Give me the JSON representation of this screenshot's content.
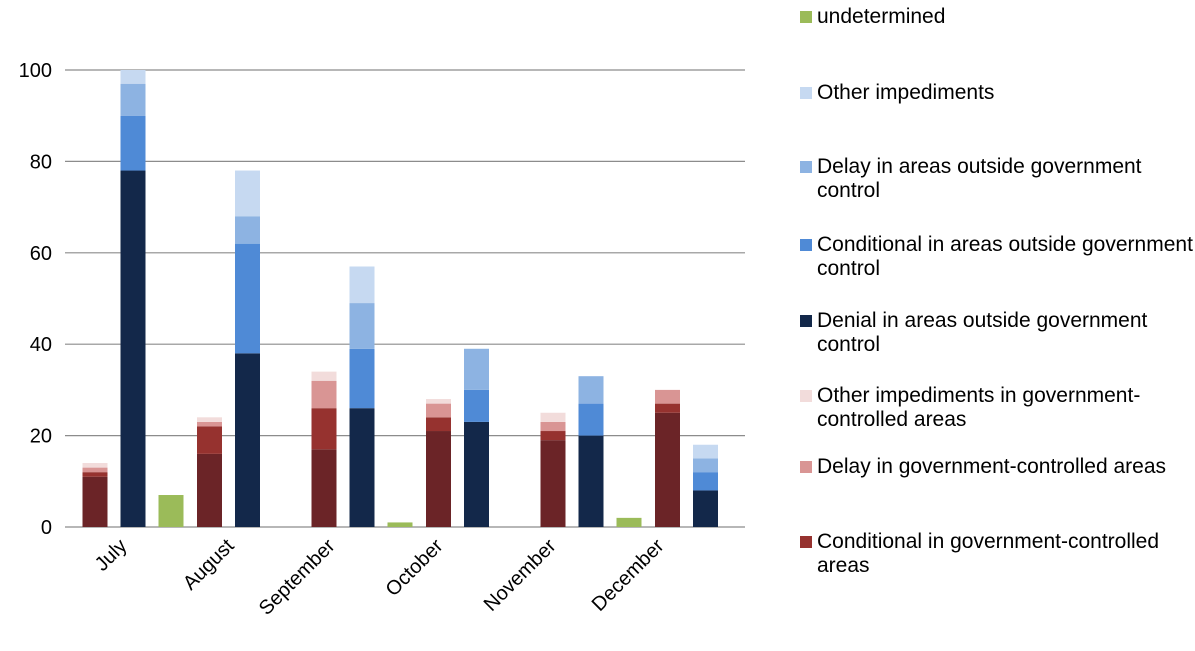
{
  "chart_data": {
    "type": "bar",
    "stacked": true,
    "ylim": [
      0,
      100
    ],
    "yticks": [
      0,
      20,
      40,
      60,
      80,
      100
    ],
    "grid": true,
    "legend_position": "right",
    "categories": [
      "July",
      "August",
      "September",
      "October",
      "November",
      "December"
    ],
    "series": [
      {
        "name": "Conditional in government-controlled areas",
        "group": "government",
        "color": "#96322f",
        "values": [
          1,
          6,
          9,
          3,
          2,
          2
        ]
      },
      {
        "name": "Delay in government-controlled areas",
        "group": "government",
        "color": "#d99594",
        "values": [
          1,
          1,
          6,
          3,
          2,
          3
        ]
      },
      {
        "name": "Other impediments in government-controlled areas",
        "group": "government",
        "color": "#f2dcdb",
        "values": [
          1,
          1,
          2,
          1,
          2,
          0
        ]
      },
      {
        "name": "Denial in areas outside government control",
        "group": "outside",
        "color": "#13284a",
        "values": [
          78,
          38,
          26,
          23,
          20,
          8
        ]
      },
      {
        "name": "Conditional in areas outside government control",
        "group": "outside",
        "color": "#4f8ad6",
        "values": [
          12,
          24,
          13,
          7,
          7,
          4
        ]
      },
      {
        "name": "Delay in areas outside government control",
        "group": "outside",
        "color": "#8db3e2",
        "values": [
          7,
          6,
          10,
          9,
          6,
          3
        ]
      },
      {
        "name": "Other impediments",
        "group": "outside",
        "color": "#c6d9f1",
        "values": [
          3,
          10,
          8,
          0,
          0,
          3
        ]
      },
      {
        "name": "undetermined",
        "group": "undetermined",
        "color": "#9bbb59",
        "values": [
          7,
          0,
          1,
          0,
          2,
          0
        ]
      }
    ],
    "government_base": {
      "name": "",
      "color": "#6b2427",
      "values": [
        11,
        16,
        17,
        21,
        19,
        25
      ]
    }
  },
  "legend": [
    {
      "label": "undetermined",
      "color": "#9bbb59"
    },
    {
      "label": "Other impediments",
      "color": "#c6d9f1"
    },
    {
      "label": "Delay in areas outside government control",
      "color": "#8db3e2"
    },
    {
      "label": "Conditional in areas outside government control",
      "color": "#4f8ad6"
    },
    {
      "label": "Denial in areas outside government control",
      "color": "#13284a"
    },
    {
      "label": "Other impediments in government-controlled areas",
      "color": "#f2dcdb"
    },
    {
      "label": "Delay in government-controlled areas",
      "color": "#d99594"
    },
    {
      "label": "Conditional in government-controlled areas",
      "color": "#96322f"
    }
  ]
}
